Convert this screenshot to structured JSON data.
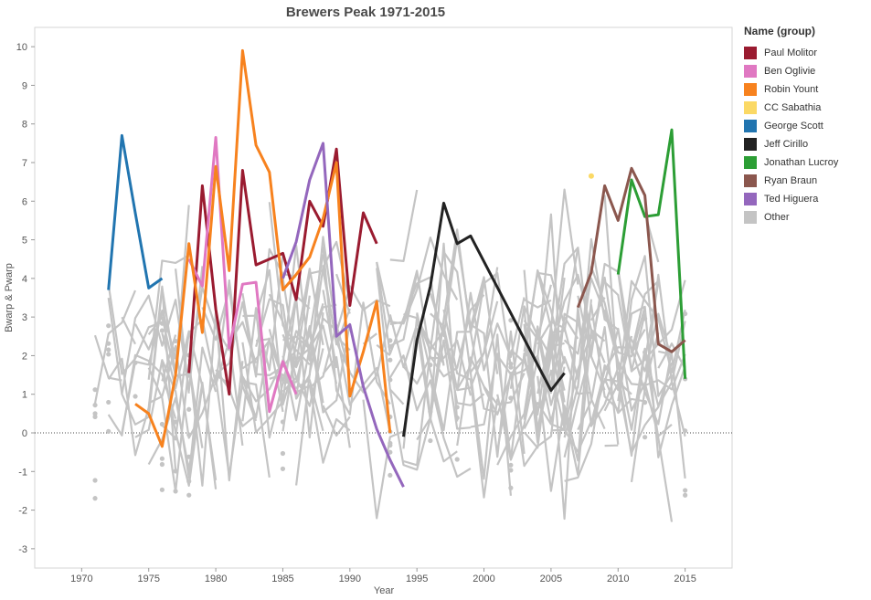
{
  "chart_data": {
    "type": "line",
    "title": "Brewers Peak 1971-2015",
    "xlabel": "Year",
    "ylabel": "Bwarp & Pwarp",
    "xlim": [
      1966.5,
      2018.5
    ],
    "ylim": [
      -3.5,
      10.5
    ],
    "x_ticks": [
      1970,
      1975,
      1980,
      1985,
      1990,
      1995,
      2000,
      2005,
      2010,
      2015
    ],
    "y_ticks": [
      -3,
      -2,
      -1,
      0,
      1,
      2,
      3,
      4,
      5,
      6,
      7,
      8,
      9,
      10
    ],
    "zero_line": true,
    "grid": false,
    "legend_title": "Name (group)",
    "legend_position": "right",
    "series": [
      {
        "name": "Paul Molitor",
        "color": "#9a1b30",
        "x": [
          1978,
          1979,
          1980,
          1981,
          1982,
          1983,
          1984,
          1985,
          1986,
          1987,
          1988,
          1989,
          1990,
          1991,
          1992
        ],
        "y": [
          1.55,
          6.4,
          3.2,
          1.0,
          6.8,
          4.35,
          4.5,
          4.65,
          3.45,
          6.0,
          5.35,
          7.35,
          3.3,
          5.7,
          4.9
        ]
      },
      {
        "name": "Ben Oglivie",
        "color": "#e078c2",
        "x": [
          1978,
          1979,
          1980,
          1981,
          1982,
          1983,
          1984,
          1985,
          1986
        ],
        "y": [
          4.5,
          3.8,
          7.65,
          2.2,
          3.85,
          3.9,
          0.55,
          1.85,
          1.0
        ]
      },
      {
        "name": "Robin Yount",
        "color": "#f7821e",
        "x": [
          1974,
          1975,
          1976,
          1977,
          1978,
          1979,
          1980,
          1981,
          1982,
          1983,
          1984,
          1985,
          1986,
          1987,
          1988,
          1989,
          1990,
          1991,
          1992,
          1993
        ],
        "y": [
          0.75,
          0.5,
          -0.35,
          1.5,
          4.9,
          2.6,
          6.9,
          4.2,
          9.9,
          7.45,
          6.75,
          3.7,
          4.1,
          4.55,
          5.55,
          7.0,
          0.95,
          2.1,
          3.4,
          0.0
        ]
      },
      {
        "name": "CC Sabathia",
        "color": "#fbd965",
        "x": [
          2008
        ],
        "y": [
          6.65
        ]
      },
      {
        "name": "George Scott",
        "color": "#2175b0",
        "x": [
          1972,
          1973,
          1974,
          1975,
          1976
        ],
        "y": [
          3.7,
          7.7,
          5.7,
          3.75,
          4.0
        ]
      },
      {
        "name": "Jeff Cirillo",
        "color": "#222222",
        "x": [
          1994,
          1995,
          1996,
          1997,
          1998,
          1999,
          2005,
          2006
        ],
        "y": [
          -0.1,
          2.4,
          3.8,
          5.95,
          4.9,
          5.1,
          1.1,
          1.55
        ]
      },
      {
        "name": "Jonathan Lucroy",
        "color": "#2c9e35",
        "x": [
          2010,
          2011,
          2012,
          2013,
          2014,
          2015
        ],
        "y": [
          4.1,
          6.55,
          5.6,
          5.65,
          7.85,
          1.4
        ]
      },
      {
        "name": "Ryan Braun",
        "color": "#8b574e",
        "x": [
          2007,
          2008,
          2009,
          2010,
          2011,
          2012,
          2013,
          2014,
          2015
        ],
        "y": [
          3.25,
          4.15,
          6.4,
          5.5,
          6.85,
          6.15,
          2.3,
          2.1,
          2.4
        ]
      },
      {
        "name": "Ted Higuera",
        "color": "#9467bd",
        "x": [
          1985,
          1986,
          1987,
          1988,
          1989,
          1990,
          1991,
          1992,
          1993,
          1994
        ],
        "y": [
          4.0,
          4.95,
          6.55,
          7.5,
          2.5,
          2.8,
          1.2,
          0.1,
          -0.7,
          -1.4
        ]
      },
      {
        "name": "Other",
        "color": "#c4c4c4",
        "lines": [],
        "points": []
      }
    ]
  }
}
